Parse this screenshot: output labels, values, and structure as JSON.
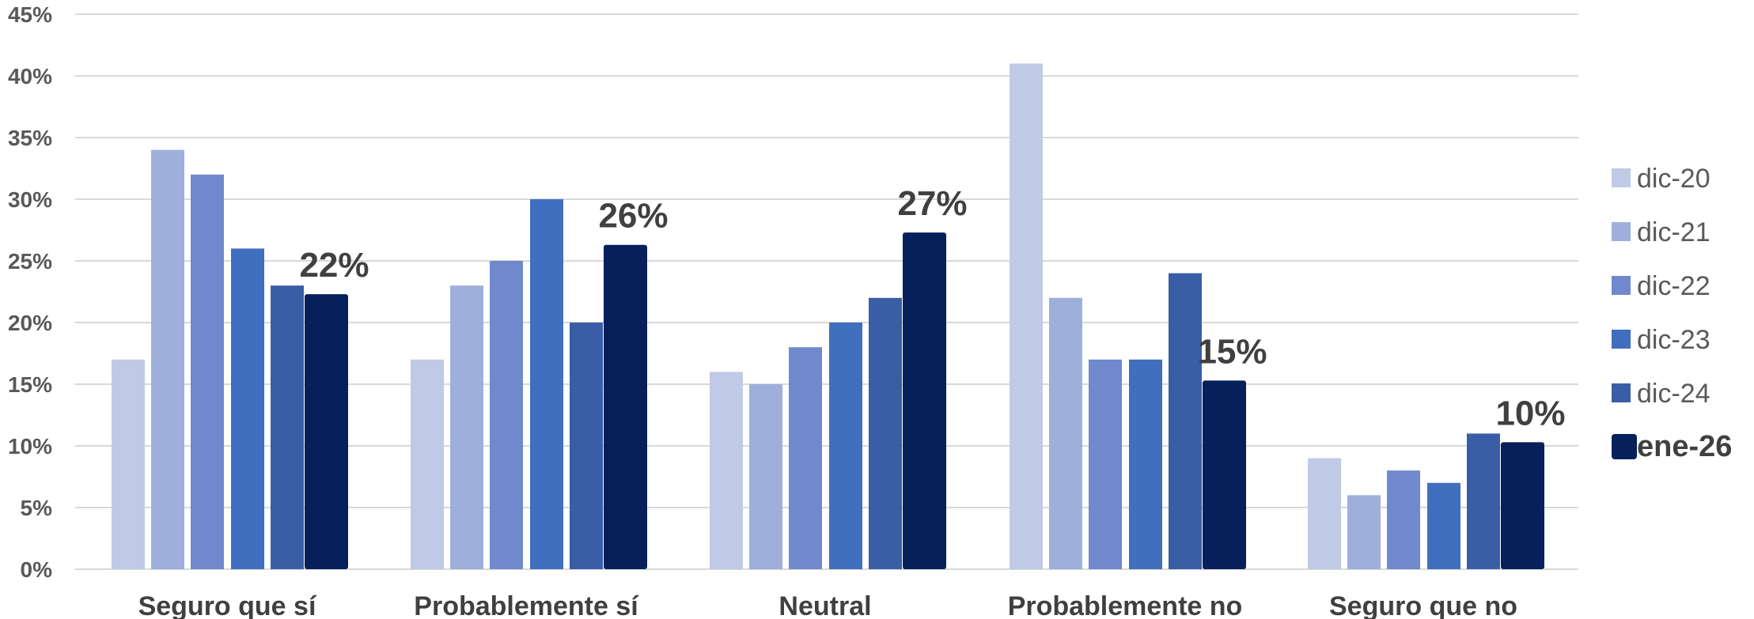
{
  "chart_data": {
    "type": "bar",
    "categories": [
      "Seguro que sí",
      "Probablemente sí",
      "Neutral",
      "Probablemente no",
      "Seguro que no"
    ],
    "series": [
      {
        "name": "dic-20",
        "color": "#c0cae6",
        "values": [
          17,
          17,
          16,
          41,
          9
        ]
      },
      {
        "name": "dic-21",
        "color": "#9eafdb",
        "values": [
          34,
          23,
          15,
          22,
          6
        ]
      },
      {
        "name": "dic-22",
        "color": "#7089cc",
        "values": [
          32,
          25,
          18,
          17,
          8
        ]
      },
      {
        "name": "dic-23",
        "color": "#416fbf",
        "values": [
          26,
          30,
          20,
          17,
          7
        ]
      },
      {
        "name": "dic-24",
        "color": "#3a5ea6",
        "values": [
          23,
          20,
          22,
          24,
          11
        ]
      },
      {
        "name": "ene-26",
        "color": "#06205c",
        "values": [
          22.3,
          26.3,
          27.3,
          15.3,
          10.3
        ],
        "emphasized": true
      }
    ],
    "data_labels": {
      "series": "ene-26",
      "texts": [
        "22%",
        "26%",
        "27%",
        "15%",
        "10%"
      ]
    },
    "y_ticks": [
      "0%",
      "5%",
      "10%",
      "15%",
      "20%",
      "25%",
      "30%",
      "35%",
      "40%",
      "45%"
    ],
    "ylim": [
      0,
      45
    ],
    "y_unit": "%",
    "grid": true,
    "legend_position": "right"
  }
}
